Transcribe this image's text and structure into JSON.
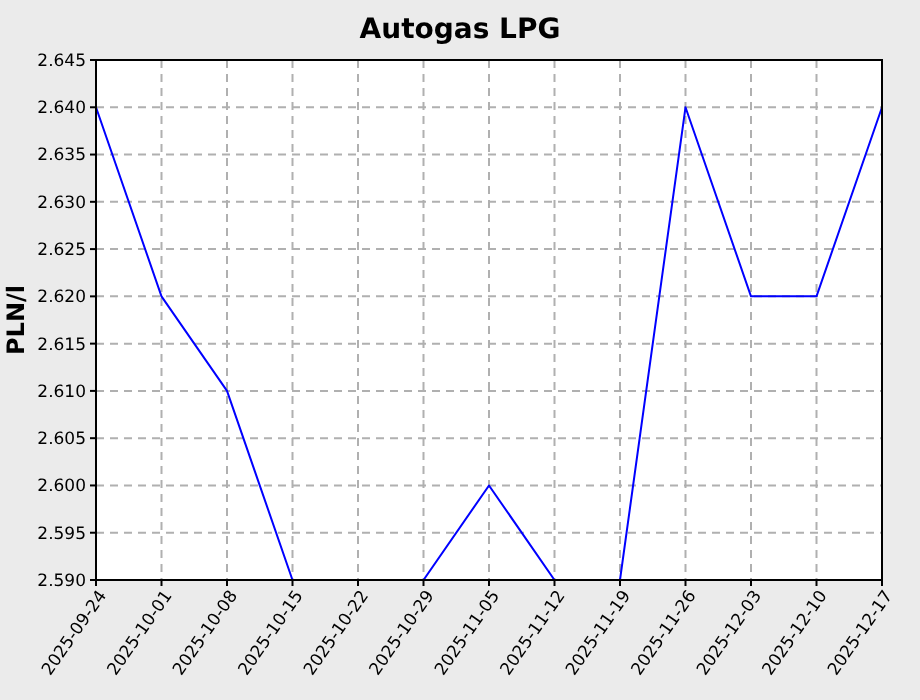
{
  "chart_data": {
    "type": "line",
    "title": "Autogas LPG",
    "ylabel": "PLN/l",
    "categories": [
      "2025-09-24",
      "2025-10-01",
      "2025-10-08",
      "2025-10-15",
      "2025-10-22",
      "2025-10-29",
      "2025-11-05",
      "2025-11-12",
      "2025-11-19",
      "2025-11-26",
      "2025-12-03",
      "2025-12-10",
      "2025-12-17"
    ],
    "series": [
      {
        "color": "#0000ff",
        "values": [
          2.64,
          2.62,
          2.61,
          2.59,
          null,
          2.59,
          2.6,
          2.59,
          2.59,
          2.64,
          2.62,
          2.62,
          2.64
        ]
      }
    ],
    "ylim": [
      2.59,
      2.645
    ],
    "yticks": [
      {
        "value": 2.59,
        "label": "2.590"
      },
      2.595,
      {
        "value": 2.6,
        "label": "2.600"
      },
      2.605,
      {
        "value": 2.61,
        "label": "2.610"
      },
      2.615,
      {
        "value": 2.62,
        "label": "2.620"
      },
      2.625,
      {
        "value": 2.63,
        "label": "2.630"
      },
      2.635,
      {
        "value": 2.64,
        "label": "2.640"
      },
      2.645
    ],
    "grid": true,
    "marker": "none",
    "line_style": "solid"
  }
}
